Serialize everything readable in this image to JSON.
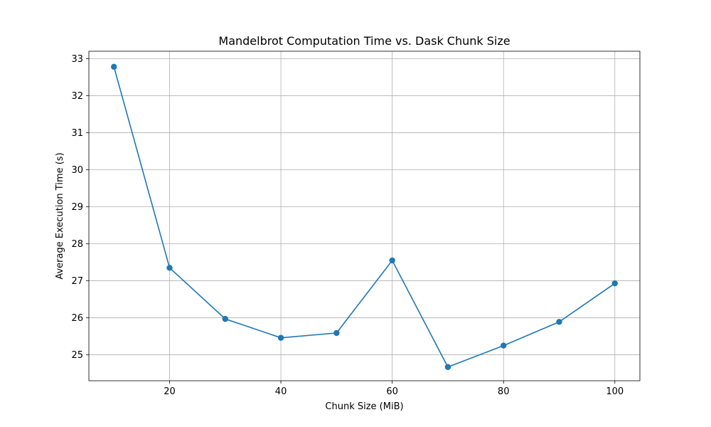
{
  "chart_data": {
    "type": "line",
    "title": "Mandelbrot Computation Time vs. Dask Chunk Size",
    "xlabel": "Chunk Size (MiB)",
    "ylabel": "Average Execution Time (s)",
    "xlim": [
      5.5,
      104.5
    ],
    "ylim": [
      24.3,
      33.2
    ],
    "xticks": [
      20,
      40,
      60,
      80,
      100
    ],
    "yticks": [
      25,
      26,
      27,
      28,
      29,
      30,
      31,
      32,
      33
    ],
    "grid": true,
    "color": "#1f77b4",
    "series": [
      {
        "x": [
          10,
          20,
          30,
          40,
          50,
          60,
          70,
          80,
          90,
          100
        ],
        "values": [
          32.78,
          27.35,
          25.97,
          25.46,
          25.59,
          27.55,
          24.67,
          25.25,
          25.89,
          26.93
        ]
      }
    ]
  }
}
